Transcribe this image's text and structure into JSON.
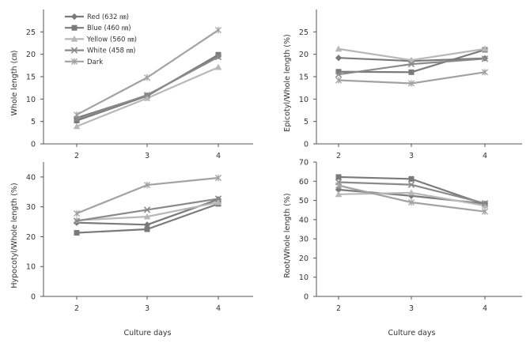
{
  "chart_data": [
    {
      "type": "line",
      "panel": "top-left",
      "ylabel": "Whole length (㎝)",
      "xlabel": "",
      "x": [
        2,
        3,
        4
      ],
      "ylim": [
        0,
        30
      ],
      "yticks": [
        0,
        5,
        10,
        15,
        20,
        25
      ],
      "grid": false,
      "legend_position": "top-left",
      "series": [
        {
          "name": "Red (632 ㎚)",
          "marker": "diamond",
          "color": "#7a7a7a",
          "values": [
            5.8,
            10.8,
            19.6
          ]
        },
        {
          "name": "Blue (460 ㎚)",
          "marker": "square",
          "color": "#7a7a7a",
          "values": [
            5.2,
            10.7,
            19.9
          ]
        },
        {
          "name": "Yellow (560 ㎚)",
          "marker": "triangle",
          "color": "#b8b8b8",
          "values": [
            3.9,
            10.2,
            17.1
          ]
        },
        {
          "name": "White (458 ㎚)",
          "marker": "x",
          "color": "#8a8a8a",
          "values": [
            5.5,
            10.9,
            19.4
          ]
        },
        {
          "name": "Dark",
          "marker": "star",
          "color": "#a2a2a2",
          "values": [
            6.5,
            14.8,
            25.4
          ]
        }
      ]
    },
    {
      "type": "line",
      "panel": "top-right",
      "ylabel": "Epicotyl/Whole length (%)",
      "xlabel": "",
      "x": [
        2,
        3,
        4
      ],
      "ylim": [
        0,
        30
      ],
      "yticks": [
        0,
        5,
        10,
        15,
        20,
        25
      ],
      "grid": false,
      "series": [
        {
          "name": "Red (632 ㎚)",
          "marker": "diamond",
          "color": "#7a7a7a",
          "values": [
            19.2,
            18.5,
            19.1
          ]
        },
        {
          "name": "Blue (460 ㎚)",
          "marker": "square",
          "color": "#7a7a7a",
          "values": [
            16.1,
            16.0,
            21.0
          ]
        },
        {
          "name": "Yellow (560 ㎚)",
          "marker": "triangle",
          "color": "#b8b8b8",
          "values": [
            21.2,
            18.7,
            21.2
          ]
        },
        {
          "name": "White (458 ㎚)",
          "marker": "x",
          "color": "#8a8a8a",
          "values": [
            15.5,
            17.8,
            19.0
          ]
        },
        {
          "name": "Dark",
          "marker": "star",
          "color": "#a2a2a2",
          "values": [
            14.2,
            13.5,
            16.0
          ]
        }
      ]
    },
    {
      "type": "line",
      "panel": "bottom-left",
      "ylabel": "Hypocotyl/Whole length (%)",
      "xlabel": "Culture days",
      "x": [
        2,
        3,
        4
      ],
      "ylim": [
        0,
        45
      ],
      "yticks": [
        0,
        10,
        20,
        30,
        40
      ],
      "grid": false,
      "series": [
        {
          "name": "Red (632 ㎚)",
          "marker": "diamond",
          "color": "#7a7a7a",
          "values": [
            24.7,
            24.0,
            32.5
          ]
        },
        {
          "name": "Blue (460 ㎚)",
          "marker": "square",
          "color": "#7a7a7a",
          "values": [
            21.3,
            22.5,
            31.0
          ]
        },
        {
          "name": "Yellow (560 ㎚)",
          "marker": "triangle",
          "color": "#b8b8b8",
          "values": [
            25.5,
            26.7,
            31.5
          ]
        },
        {
          "name": "White (458 ㎚)",
          "marker": "x",
          "color": "#8a8a8a",
          "values": [
            25.3,
            29.0,
            32.7
          ]
        },
        {
          "name": "Dark",
          "marker": "star",
          "color": "#a2a2a2",
          "values": [
            27.8,
            37.3,
            39.7
          ]
        }
      ]
    },
    {
      "type": "line",
      "panel": "bottom-right",
      "ylabel": "Root/Whole length (%)",
      "xlabel": "Culture days",
      "x": [
        2,
        3,
        4
      ],
      "ylim": [
        0,
        70
      ],
      "yticks": [
        0,
        10,
        20,
        30,
        40,
        50,
        60,
        70
      ],
      "grid": false,
      "series": [
        {
          "name": "Red (632 ㎚)",
          "marker": "diamond",
          "color": "#7a7a7a",
          "values": [
            55.6,
            52.4,
            48.3
          ]
        },
        {
          "name": "Blue (460 ㎚)",
          "marker": "square",
          "color": "#7a7a7a",
          "values": [
            62.2,
            61.2,
            48.0
          ]
        },
        {
          "name": "Yellow (560 ㎚)",
          "marker": "triangle",
          "color": "#b8b8b8",
          "values": [
            53.2,
            54.0,
            47.3
          ]
        },
        {
          "name": "White (458 ㎚)",
          "marker": "x",
          "color": "#8a8a8a",
          "values": [
            59.5,
            58.2,
            48.5
          ]
        },
        {
          "name": "Dark",
          "marker": "star",
          "color": "#a2a2a2",
          "values": [
            57.8,
            49.0,
            44.2
          ]
        }
      ]
    }
  ]
}
